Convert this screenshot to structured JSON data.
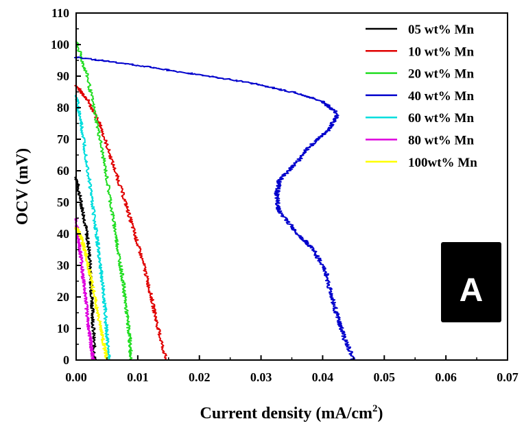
{
  "chart_data": {
    "type": "line",
    "xlabel": "Current density (mA/cm",
    "xlabel_sup": "2",
    "xlabel_end": ")",
    "ylabel": "OCV (mV)",
    "xlim": [
      0,
      0.07
    ],
    "ylim": [
      0,
      110
    ],
    "x_ticks": [
      "0.00",
      "0.01",
      "0.02",
      "0.03",
      "0.04",
      "0.05",
      "0.06",
      "0.07"
    ],
    "y_ticks": [
      "0",
      "10",
      "20",
      "30",
      "40",
      "50",
      "60",
      "70",
      "80",
      "90",
      "100",
      "110"
    ],
    "grid": false,
    "legend_position": "top-right",
    "panel_label": "A",
    "series": [
      {
        "name": "05 wt% Mn",
        "color": "#000000",
        "points": [
          [
            0.0,
            58
          ],
          [
            0.0008,
            50
          ],
          [
            0.0015,
            43
          ],
          [
            0.0021,
            35
          ],
          [
            0.0024,
            25
          ],
          [
            0.0026,
            18
          ],
          [
            0.0028,
            10
          ],
          [
            0.003,
            0
          ]
        ]
      },
      {
        "name": "10 wt% Mn",
        "color": "#e00000",
        "points": [
          [
            0.0,
            87
          ],
          [
            0.002,
            82
          ],
          [
            0.004,
            74
          ],
          [
            0.006,
            62
          ],
          [
            0.008,
            50
          ],
          [
            0.0095,
            40
          ],
          [
            0.011,
            30
          ],
          [
            0.0122,
            20
          ],
          [
            0.0133,
            10
          ],
          [
            0.0146,
            0
          ]
        ]
      },
      {
        "name": "20 wt% Mn",
        "color": "#22dd22",
        "points": [
          [
            0.0,
            101
          ],
          [
            0.0018,
            90
          ],
          [
            0.0034,
            75
          ],
          [
            0.0048,
            60
          ],
          [
            0.006,
            45
          ],
          [
            0.0068,
            35
          ],
          [
            0.0076,
            25
          ],
          [
            0.0082,
            15
          ],
          [
            0.0087,
            7
          ],
          [
            0.0089,
            0
          ]
        ]
      },
      {
        "name": "40 wt% Mn",
        "color": "#0000cc",
        "points": [
          [
            0.0,
            96
          ],
          [
            0.008,
            94
          ],
          [
            0.018,
            91
          ],
          [
            0.028,
            88
          ],
          [
            0.035,
            85
          ],
          [
            0.04,
            82
          ],
          [
            0.0425,
            78
          ],
          [
            0.041,
            73
          ],
          [
            0.038,
            68
          ],
          [
            0.0355,
            62
          ],
          [
            0.033,
            57
          ],
          [
            0.0325,
            52
          ],
          [
            0.033,
            47
          ],
          [
            0.0355,
            41
          ],
          [
            0.0385,
            35
          ],
          [
            0.0405,
            28
          ],
          [
            0.0415,
            20
          ],
          [
            0.0425,
            13
          ],
          [
            0.0435,
            7
          ],
          [
            0.045,
            0
          ]
        ]
      },
      {
        "name": "60 wt% Mn",
        "color": "#00dddd",
        "points": [
          [
            0.0,
            84
          ],
          [
            0.0008,
            75
          ],
          [
            0.0016,
            65
          ],
          [
            0.0025,
            52
          ],
          [
            0.0033,
            40
          ],
          [
            0.0038,
            32
          ],
          [
            0.0043,
            24
          ],
          [
            0.0047,
            16
          ],
          [
            0.005,
            8
          ],
          [
            0.0053,
            0
          ]
        ]
      },
      {
        "name": "80 wt% Mn",
        "color": "#dd00dd",
        "points": [
          [
            0.0,
            45
          ],
          [
            0.0004,
            38
          ],
          [
            0.0008,
            32
          ],
          [
            0.0012,
            25
          ],
          [
            0.0016,
            18
          ],
          [
            0.002,
            11
          ],
          [
            0.0024,
            5
          ],
          [
            0.0028,
            0
          ]
        ]
      },
      {
        "name": "100wt% Mn",
        "color": "#ffff00",
        "points": [
          [
            0.0,
            42
          ],
          [
            0.0006,
            40
          ],
          [
            0.0014,
            35
          ],
          [
            0.0022,
            28
          ],
          [
            0.003,
            20
          ],
          [
            0.0038,
            12
          ],
          [
            0.0045,
            5
          ],
          [
            0.005,
            0
          ]
        ]
      }
    ]
  }
}
